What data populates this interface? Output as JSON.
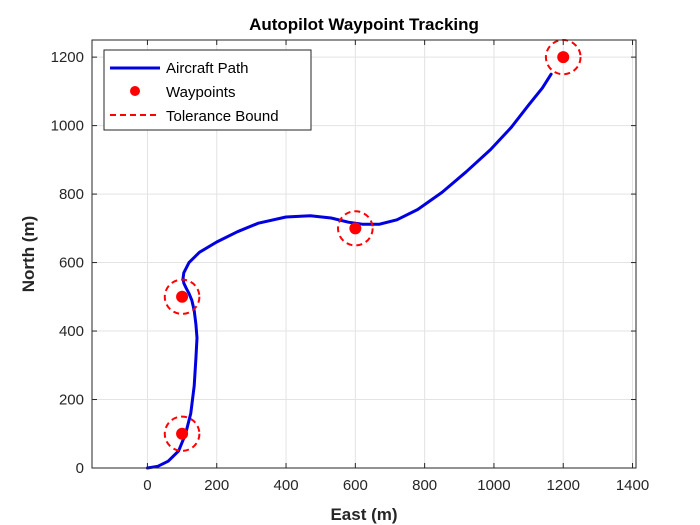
{
  "chart_data": {
    "type": "line",
    "title": "Autopilot Waypoint Tracking",
    "xlabel": "East (m)",
    "ylabel": "North (m)",
    "xlim": [
      -160,
      1410
    ],
    "ylim": [
      0,
      1250
    ],
    "xticks": [
      0,
      200,
      400,
      600,
      800,
      1000,
      1200,
      1400
    ],
    "yticks": [
      0,
      200,
      400,
      600,
      800,
      1000,
      1200
    ],
    "grid": true,
    "legend_position": "top-left",
    "series": [
      {
        "name": "Aircraft Path",
        "kind": "line",
        "color": "#0000e0",
        "x": [
          0,
          30,
          60,
          90,
          110,
          125,
          135,
          140,
          143,
          140,
          135,
          128,
          120,
          112,
          105,
          103,
          105,
          120,
          150,
          200,
          260,
          320,
          400,
          470,
          530,
          580,
          620,
          670,
          720,
          780,
          850,
          920,
          990,
          1050,
          1100,
          1140,
          1165
        ],
        "y": [
          0,
          5,
          20,
          50,
          100,
          160,
          240,
          320,
          380,
          420,
          460,
          490,
          510,
          525,
          540,
          555,
          570,
          600,
          630,
          660,
          690,
          715,
          733,
          737,
          730,
          718,
          712,
          712,
          725,
          755,
          805,
          865,
          930,
          995,
          1060,
          1110,
          1150
        ]
      },
      {
        "name": "Waypoints",
        "kind": "markers",
        "color": "#ff0000",
        "x": [
          100,
          100,
          600,
          1200
        ],
        "y": [
          100,
          500,
          700,
          1200
        ]
      },
      {
        "name": "Tolerance Bound",
        "kind": "dashed-circles",
        "color": "#ff0000",
        "radius": 50,
        "x": [
          100,
          100,
          600,
          1200
        ],
        "y": [
          100,
          500,
          700,
          1200
        ]
      }
    ]
  }
}
